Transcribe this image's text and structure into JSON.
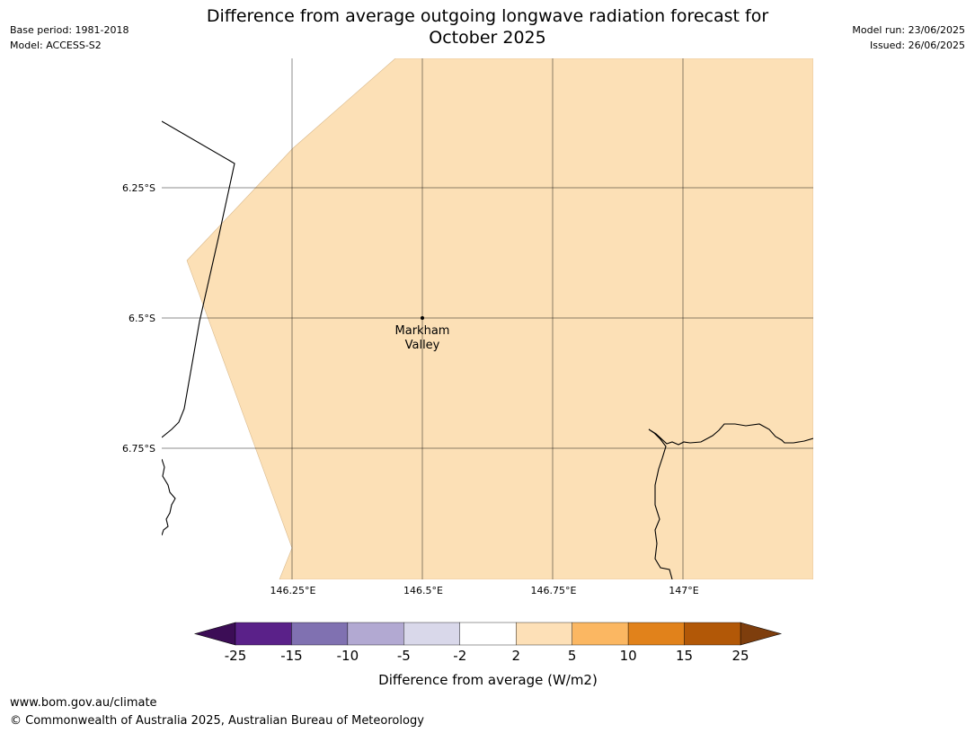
{
  "title": {
    "line1": "Difference from average outgoing longwave radiation forecast for",
    "line2": "October 2025"
  },
  "meta": {
    "base_period": "Base period: 1981-2018",
    "model": "Model: ACCESS-S2",
    "model_run": "Model run: 23/06/2025",
    "issued": "Issued: 26/06/2025"
  },
  "map": {
    "lat_ticks": [
      "6.25°S",
      "6.5°S",
      "6.75°S"
    ],
    "lon_ticks": [
      "146.25°E",
      "146.5°E",
      "146.75°E",
      "147°E"
    ],
    "place": {
      "name_line1": "Markham",
      "name_line2": "Valley"
    },
    "fill_color": "#fce0b6"
  },
  "colorbar": {
    "label": "Difference from average (W/m2)",
    "ticks": [
      "-25",
      "-15",
      "-10",
      "-5",
      "-2",
      "2",
      "5",
      "10",
      "15",
      "25"
    ],
    "colors": [
      "#5a2189",
      "#8071b1",
      "#b2a9d2",
      "#d9d8ea",
      "#ffffff",
      "#fde0b7",
      "#fbb762",
      "#e1821b",
      "#b25807"
    ],
    "low_extend_color": "#3c0d56",
    "high_extend_color": "#7e3e0d"
  },
  "footer": {
    "url": "www.bom.gov.au/climate",
    "copyright": "© Commonwealth of Australia 2025, Australian Bureau of Meteorology"
  }
}
